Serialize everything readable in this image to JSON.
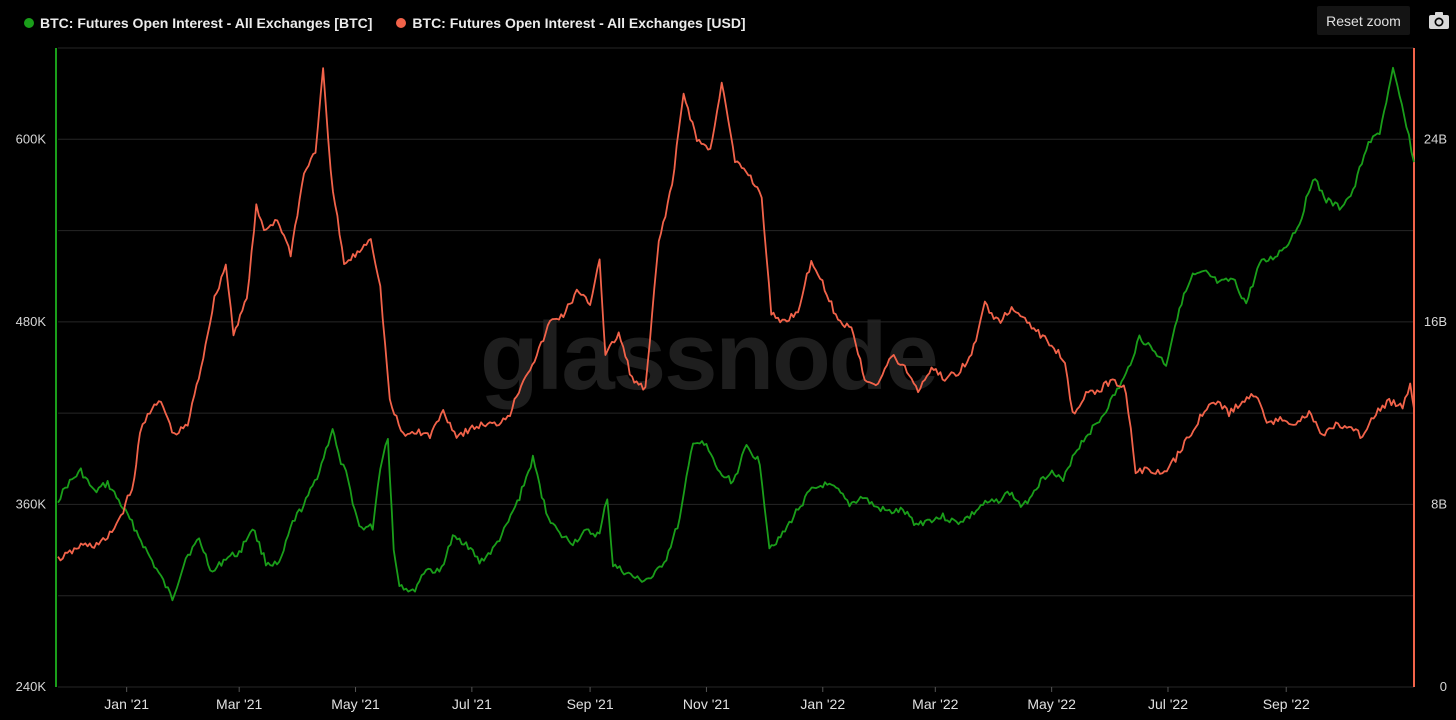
{
  "legend": [
    {
      "label": "BTC: Futures Open Interest - All Exchanges [BTC]",
      "color": "#1a9e1a"
    },
    {
      "label": "BTC: Futures Open Interest - All Exchanges [USD]",
      "color": "#f2634a"
    }
  ],
  "toolbar": {
    "reset_zoom_label": "Reset zoom",
    "camera_icon": "camera-icon"
  },
  "watermark": "glassnode",
  "chart_data": {
    "type": "line",
    "title": "",
    "grid": true,
    "x_ticks": [
      "Jan '21",
      "Mar '21",
      "May '21",
      "Jul '21",
      "Sep '21",
      "Nov '21",
      "Jan '22",
      "Mar '22",
      "May '22",
      "Jul '22",
      "Sep '22"
    ],
    "x_tick_dates": [
      "2021-01-01",
      "2021-03-01",
      "2021-05-01",
      "2021-07-01",
      "2021-09-01",
      "2021-11-01",
      "2022-01-01",
      "2022-03-01",
      "2022-05-01",
      "2022-07-01",
      "2022-09-01"
    ],
    "x_range": [
      "2020-11-26",
      "2022-11-07"
    ],
    "y_left": {
      "ticks": [
        "240K",
        "360K",
        "480K",
        "600K"
      ],
      "tick_values": [
        240000,
        360000,
        480000,
        600000
      ],
      "range": [
        240000,
        660000
      ]
    },
    "y_right": {
      "ticks": [
        "0",
        "8B",
        "16B",
        "24B"
      ],
      "tick_values": [
        0,
        8000000000,
        16000000000,
        24000000000
      ],
      "range": [
        0,
        28000000000
      ]
    },
    "series": [
      {
        "name": "BTC: Futures Open Interest - All Exchanges [BTC]",
        "axis": "left",
        "color": "#1a9e1a",
        "points": [
          [
            "2020-11-26",
            363000
          ],
          [
            "2020-12-01",
            373000
          ],
          [
            "2020-12-08",
            382000
          ],
          [
            "2020-12-15",
            368000
          ],
          [
            "2020-12-22",
            374000
          ],
          [
            "2020-12-29",
            360000
          ],
          [
            "2021-01-05",
            345000
          ],
          [
            "2021-01-12",
            328000
          ],
          [
            "2021-01-19",
            312000
          ],
          [
            "2021-01-25",
            298000
          ],
          [
            "2021-02-01",
            325000
          ],
          [
            "2021-02-08",
            337000
          ],
          [
            "2021-02-15",
            315000
          ],
          [
            "2021-02-22",
            325000
          ],
          [
            "2021-03-01",
            328000
          ],
          [
            "2021-03-08",
            345000
          ],
          [
            "2021-03-15",
            322000
          ],
          [
            "2021-03-22",
            320000
          ],
          [
            "2021-03-29",
            348000
          ],
          [
            "2021-04-05",
            362000
          ],
          [
            "2021-04-12",
            382000
          ],
          [
            "2021-04-19",
            410000
          ],
          [
            "2021-04-22",
            392000
          ],
          [
            "2021-04-26",
            380000
          ],
          [
            "2021-05-03",
            345000
          ],
          [
            "2021-05-10",
            345000
          ],
          [
            "2021-05-14",
            385000
          ],
          [
            "2021-05-18",
            405000
          ],
          [
            "2021-05-21",
            330000
          ],
          [
            "2021-05-24",
            308000
          ],
          [
            "2021-05-31",
            302000
          ],
          [
            "2021-06-07",
            318000
          ],
          [
            "2021-06-14",
            315000
          ],
          [
            "2021-06-21",
            338000
          ],
          [
            "2021-06-28",
            335000
          ],
          [
            "2021-07-05",
            322000
          ],
          [
            "2021-07-12",
            330000
          ],
          [
            "2021-07-19",
            345000
          ],
          [
            "2021-07-26",
            365000
          ],
          [
            "2021-08-02",
            390000
          ],
          [
            "2021-08-09",
            355000
          ],
          [
            "2021-08-16",
            340000
          ],
          [
            "2021-08-23",
            335000
          ],
          [
            "2021-08-30",
            342000
          ],
          [
            "2021-09-06",
            340000
          ],
          [
            "2021-09-10",
            365000
          ],
          [
            "2021-09-13",
            320000
          ],
          [
            "2021-09-20",
            315000
          ],
          [
            "2021-09-27",
            310000
          ],
          [
            "2021-10-04",
            312000
          ],
          [
            "2021-10-11",
            325000
          ],
          [
            "2021-10-18",
            350000
          ],
          [
            "2021-10-25",
            402000
          ],
          [
            "2021-11-01",
            398000
          ],
          [
            "2021-11-08",
            380000
          ],
          [
            "2021-11-15",
            375000
          ],
          [
            "2021-11-22",
            398000
          ],
          [
            "2021-11-29",
            388000
          ],
          [
            "2021-12-04",
            332000
          ],
          [
            "2021-12-11",
            340000
          ],
          [
            "2021-12-18",
            355000
          ],
          [
            "2021-12-25",
            368000
          ],
          [
            "2022-01-01",
            373000
          ],
          [
            "2022-01-08",
            370000
          ],
          [
            "2022-01-15",
            360000
          ],
          [
            "2022-01-22",
            365000
          ],
          [
            "2022-01-29",
            358000
          ],
          [
            "2022-02-05",
            355000
          ],
          [
            "2022-02-12",
            356000
          ],
          [
            "2022-02-19",
            347000
          ],
          [
            "2022-02-26",
            350000
          ],
          [
            "2022-03-05",
            352000
          ],
          [
            "2022-03-12",
            348000
          ],
          [
            "2022-03-19",
            352000
          ],
          [
            "2022-03-26",
            360000
          ],
          [
            "2022-04-02",
            362000
          ],
          [
            "2022-04-09",
            368000
          ],
          [
            "2022-04-16",
            358000
          ],
          [
            "2022-04-23",
            372000
          ],
          [
            "2022-04-30",
            382000
          ],
          [
            "2022-05-07",
            375000
          ],
          [
            "2022-05-12",
            392000
          ],
          [
            "2022-05-19",
            405000
          ],
          [
            "2022-05-26",
            415000
          ],
          [
            "2022-06-02",
            430000
          ],
          [
            "2022-06-09",
            445000
          ],
          [
            "2022-06-16",
            470000
          ],
          [
            "2022-06-23",
            462000
          ],
          [
            "2022-06-30",
            452000
          ],
          [
            "2022-07-07",
            490000
          ],
          [
            "2022-07-14",
            510000
          ],
          [
            "2022-07-21",
            512000
          ],
          [
            "2022-07-28",
            505000
          ],
          [
            "2022-08-04",
            508000
          ],
          [
            "2022-08-11",
            492000
          ],
          [
            "2022-08-18",
            518000
          ],
          [
            "2022-08-25",
            522000
          ],
          [
            "2022-09-01",
            530000
          ],
          [
            "2022-09-08",
            545000
          ],
          [
            "2022-09-15",
            575000
          ],
          [
            "2022-09-22",
            560000
          ],
          [
            "2022-09-29",
            555000
          ],
          [
            "2022-10-06",
            565000
          ],
          [
            "2022-10-13",
            595000
          ],
          [
            "2022-10-20",
            605000
          ],
          [
            "2022-10-27",
            645000
          ],
          [
            "2022-11-03",
            610000
          ],
          [
            "2022-11-07",
            585000
          ]
        ]
      },
      {
        "name": "BTC: Futures Open Interest - All Exchanges [USD]",
        "axis": "right",
        "color": "#f2634a",
        "points": [
          [
            "2020-11-26",
            5600000000
          ],
          [
            "2020-12-01",
            5800000000
          ],
          [
            "2020-12-08",
            6200000000
          ],
          [
            "2020-12-15",
            6200000000
          ],
          [
            "2020-12-22",
            6500000000
          ],
          [
            "2020-12-29",
            7500000000
          ],
          [
            "2021-01-05",
            9000000000
          ],
          [
            "2021-01-08",
            11200000000
          ],
          [
            "2021-01-12",
            12000000000
          ],
          [
            "2021-01-19",
            12500000000
          ],
          [
            "2021-01-26",
            11000000000
          ],
          [
            "2021-02-02",
            11500000000
          ],
          [
            "2021-02-09",
            14000000000
          ],
          [
            "2021-02-16",
            17000000000
          ],
          [
            "2021-02-22",
            18500000000
          ],
          [
            "2021-02-26",
            15500000000
          ],
          [
            "2021-03-05",
            17000000000
          ],
          [
            "2021-03-10",
            21000000000
          ],
          [
            "2021-03-14",
            20000000000
          ],
          [
            "2021-03-21",
            20500000000
          ],
          [
            "2021-03-28",
            19000000000
          ],
          [
            "2021-04-04",
            22500000000
          ],
          [
            "2021-04-10",
            23500000000
          ],
          [
            "2021-04-14",
            27000000000
          ],
          [
            "2021-04-18",
            22500000000
          ],
          [
            "2021-04-25",
            18500000000
          ],
          [
            "2021-05-02",
            19000000000
          ],
          [
            "2021-05-09",
            19700000000
          ],
          [
            "2021-05-14",
            17500000000
          ],
          [
            "2021-05-19",
            12500000000
          ],
          [
            "2021-05-26",
            11000000000
          ],
          [
            "2021-06-02",
            11200000000
          ],
          [
            "2021-06-09",
            11000000000
          ],
          [
            "2021-06-16",
            12100000000
          ],
          [
            "2021-06-23",
            11000000000
          ],
          [
            "2021-06-30",
            11300000000
          ],
          [
            "2021-07-07",
            11500000000
          ],
          [
            "2021-07-14",
            11500000000
          ],
          [
            "2021-07-21",
            12000000000
          ],
          [
            "2021-07-28",
            13500000000
          ],
          [
            "2021-08-04",
            14500000000
          ],
          [
            "2021-08-11",
            16000000000
          ],
          [
            "2021-08-18",
            16300000000
          ],
          [
            "2021-08-25",
            17300000000
          ],
          [
            "2021-09-01",
            16800000000
          ],
          [
            "2021-09-06",
            18800000000
          ],
          [
            "2021-09-09",
            14500000000
          ],
          [
            "2021-09-16",
            15500000000
          ],
          [
            "2021-09-23",
            13500000000
          ],
          [
            "2021-09-30",
            13000000000
          ],
          [
            "2021-10-07",
            19500000000
          ],
          [
            "2021-10-14",
            22000000000
          ],
          [
            "2021-10-20",
            26000000000
          ],
          [
            "2021-10-27",
            24000000000
          ],
          [
            "2021-11-03",
            23500000000
          ],
          [
            "2021-11-09",
            26500000000
          ],
          [
            "2021-11-16",
            23000000000
          ],
          [
            "2021-11-23",
            22500000000
          ],
          [
            "2021-11-30",
            21500000000
          ],
          [
            "2021-12-05",
            16300000000
          ],
          [
            "2021-12-12",
            16000000000
          ],
          [
            "2021-12-19",
            16500000000
          ],
          [
            "2021-12-26",
            18700000000
          ],
          [
            "2022-01-02",
            17500000000
          ],
          [
            "2022-01-09",
            16000000000
          ],
          [
            "2022-01-16",
            15800000000
          ],
          [
            "2022-01-23",
            13500000000
          ],
          [
            "2022-01-30",
            13300000000
          ],
          [
            "2022-02-06",
            14500000000
          ],
          [
            "2022-02-13",
            14000000000
          ],
          [
            "2022-02-20",
            13000000000
          ],
          [
            "2022-02-27",
            14000000000
          ],
          [
            "2022-03-06",
            13500000000
          ],
          [
            "2022-03-13",
            13800000000
          ],
          [
            "2022-03-20",
            14500000000
          ],
          [
            "2022-03-27",
            16800000000
          ],
          [
            "2022-04-03",
            16000000000
          ],
          [
            "2022-04-10",
            16500000000
          ],
          [
            "2022-04-17",
            16200000000
          ],
          [
            "2022-04-24",
            15500000000
          ],
          [
            "2022-05-01",
            15000000000
          ],
          [
            "2022-05-08",
            14300000000
          ],
          [
            "2022-05-12",
            12000000000
          ],
          [
            "2022-05-19",
            12800000000
          ],
          [
            "2022-05-26",
            13000000000
          ],
          [
            "2022-06-02",
            13500000000
          ],
          [
            "2022-06-09",
            13000000000
          ],
          [
            "2022-06-14",
            9500000000
          ],
          [
            "2022-06-21",
            9500000000
          ],
          [
            "2022-06-28",
            9300000000
          ],
          [
            "2022-07-05",
            10000000000
          ],
          [
            "2022-07-12",
            11000000000
          ],
          [
            "2022-07-19",
            12000000000
          ],
          [
            "2022-07-26",
            12500000000
          ],
          [
            "2022-08-02",
            12000000000
          ],
          [
            "2022-08-09",
            12500000000
          ],
          [
            "2022-08-16",
            12800000000
          ],
          [
            "2022-08-23",
            11500000000
          ],
          [
            "2022-08-30",
            11800000000
          ],
          [
            "2022-09-06",
            11500000000
          ],
          [
            "2022-09-13",
            12000000000
          ],
          [
            "2022-09-20",
            11000000000
          ],
          [
            "2022-09-27",
            11500000000
          ],
          [
            "2022-10-04",
            11300000000
          ],
          [
            "2022-10-11",
            11000000000
          ],
          [
            "2022-10-18",
            12000000000
          ],
          [
            "2022-10-25",
            12500000000
          ],
          [
            "2022-11-01",
            12300000000
          ],
          [
            "2022-11-05",
            13300000000
          ],
          [
            "2022-11-07",
            12200000000
          ]
        ]
      }
    ]
  }
}
